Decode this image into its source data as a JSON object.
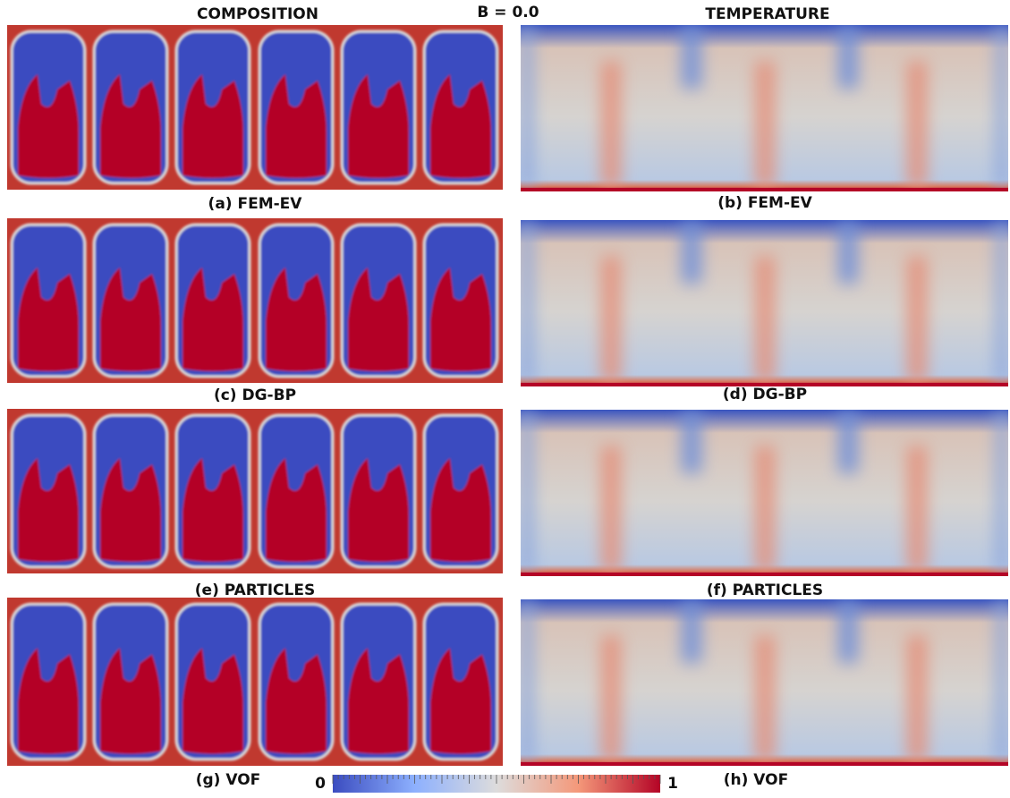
{
  "header": {
    "left": "COMPOSITION",
    "center": "B = 0.0",
    "right": "TEMPERATURE"
  },
  "panels": [
    {
      "label": "(a) FEM-EV"
    },
    {
      "label": "(b) FEM-EV"
    },
    {
      "label": "(c) DG-BP"
    },
    {
      "label": "(d) DG-BP"
    },
    {
      "label": "(e) PARTICLES"
    },
    {
      "label": "(f) PARTICLES"
    },
    {
      "label": "(g) VOF"
    },
    {
      "label": "(h) VOF"
    }
  ],
  "colorbar": {
    "min": "0",
    "max": "1"
  }
}
